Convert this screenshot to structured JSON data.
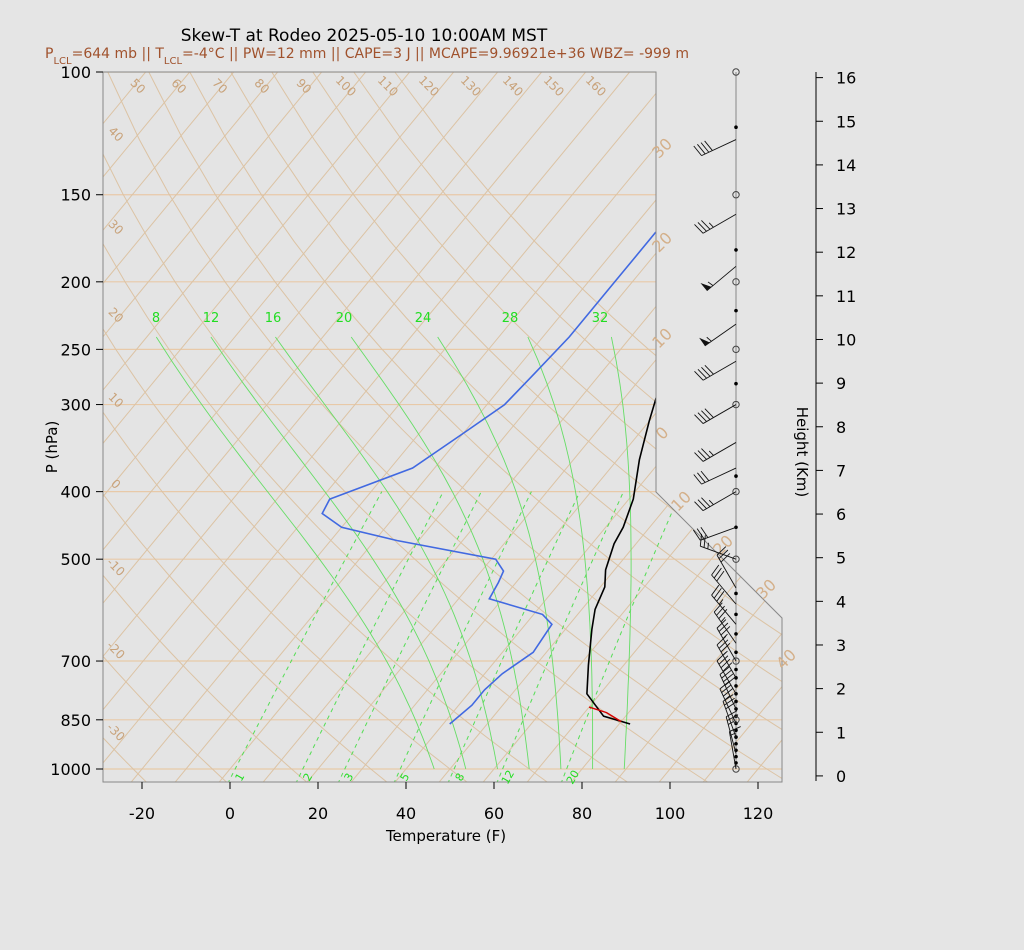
{
  "chart_data": {
    "type": "line",
    "title": "Skew-T at Rodeo 2025-05-10 10:00AM MST",
    "subtitle": {
      "plcl_label": "P",
      "plcl_sub": "LCL",
      "plcl_value": "=644 mb || T",
      "tlcl_sub": "LCL",
      "rest": "=-4°C || PW=12 mm || CAPE=3 J || MCAPE=9.96921e+36 WBZ= -999 m"
    },
    "xlabel": "Temperature (F)",
    "ylabel": "P (hPa)",
    "y2label": "Height (Km)",
    "xlim": [
      -28,
      96
    ],
    "ylim": [
      1050,
      100
    ],
    "y_scale": "log",
    "x_ticks": [
      -20,
      0,
      20,
      40,
      60,
      80,
      100,
      120
    ],
    "y_ticks": [
      100,
      150,
      200,
      250,
      300,
      400,
      500,
      700,
      850,
      1000
    ],
    "height_ticks": [
      0,
      1,
      2,
      3,
      4,
      5,
      6,
      7,
      8,
      9,
      10,
      11,
      12,
      13,
      14,
      15,
      16
    ],
    "isotherm_labels_top": [
      "50",
      "60",
      "70",
      "80",
      "90",
      "100",
      "110",
      "120",
      "130",
      "140",
      "150",
      "160"
    ],
    "isotherm_labels_left": [
      "40",
      "30",
      "20",
      "10",
      "0",
      "-10",
      "-20",
      "-30"
    ],
    "theta_labels": [
      "30",
      "20",
      "10",
      "0",
      "10",
      "20",
      "30",
      "40"
    ],
    "mixing_ratio_labels_top": [
      "8",
      "12",
      "16",
      "20",
      "24",
      "28",
      "32"
    ],
    "mixing_ratio_labels_bottom": [
      "1",
      "2",
      "3",
      "5",
      "8",
      "12",
      "20"
    ],
    "series": [
      {
        "name": "Temperature",
        "color": "#000000",
        "points": [
          [
            82.5,
            862
          ],
          [
            75,
            840
          ],
          [
            67,
            780
          ],
          [
            62,
            710
          ],
          [
            56,
            630
          ],
          [
            53,
            590
          ],
          [
            51,
            548
          ],
          [
            48,
            518
          ],
          [
            45,
            475
          ],
          [
            44,
            450
          ],
          [
            41,
            410
          ],
          [
            35,
            360
          ],
          [
            30,
            317
          ],
          [
            27,
            292
          ],
          [
            26,
            262
          ],
          [
            26,
            230
          ],
          [
            26,
            200
          ],
          [
            27,
            170
          ],
          [
            29,
            145
          ],
          [
            33,
            125
          ],
          [
            40,
            110
          ],
          [
            45,
            100
          ]
        ]
      },
      {
        "name": "Dewpoint",
        "color": "#4169e1",
        "points": [
          [
            41.5,
            862
          ],
          [
            43,
            810
          ],
          [
            43,
            770
          ],
          [
            44,
            730
          ],
          [
            47,
            680
          ],
          [
            46,
            620
          ],
          [
            42,
            600
          ],
          [
            27,
            570
          ],
          [
            26,
            540
          ],
          [
            25,
            520
          ],
          [
            21,
            500
          ],
          [
            -5,
            470
          ],
          [
            -20,
            450
          ],
          [
            -27,
            430
          ],
          [
            -28,
            410
          ],
          [
            -15,
            370
          ],
          [
            -10,
            330
          ],
          [
            -6,
            300
          ],
          [
            -5,
            270
          ],
          [
            -4,
            240
          ],
          [
            -4,
            200
          ],
          [
            -4,
            170
          ],
          [
            0,
            150
          ],
          [
            6,
            130
          ],
          [
            14,
            115
          ],
          [
            20,
            100
          ]
        ]
      },
      {
        "name": "Parcel",
        "color": "#d40000",
        "points": [
          [
            80,
            855
          ],
          [
            75,
            830
          ],
          [
            70,
            815
          ]
        ]
      }
    ],
    "wind_barbs_x": 115,
    "wind_barbs": [
      {
        "p": 1000,
        "dir": 350,
        "spd": 15
      },
      {
        "p": 950,
        "dir": 345,
        "spd": 25
      },
      {
        "p": 900,
        "dir": 340,
        "spd": 30
      },
      {
        "p": 860,
        "dir": 335,
        "spd": 35
      },
      {
        "p": 820,
        "dir": 335,
        "spd": 40
      },
      {
        "p": 780,
        "dir": 330,
        "spd": 40
      },
      {
        "p": 740,
        "dir": 330,
        "spd": 35
      },
      {
        "p": 700,
        "dir": 330,
        "spd": 35
      },
      {
        "p": 660,
        "dir": 325,
        "spd": 35
      },
      {
        "p": 620,
        "dir": 320,
        "spd": 35
      },
      {
        "p": 580,
        "dir": 320,
        "spd": 30
      },
      {
        "p": 550,
        "dir": 330,
        "spd": 30
      },
      {
        "p": 500,
        "dir": 290,
        "spd": 25
      },
      {
        "p": 450,
        "dir": 250,
        "spd": 30
      },
      {
        "p": 400,
        "dir": 240,
        "spd": 35
      },
      {
        "p": 370,
        "dir": 245,
        "spd": 30
      },
      {
        "p": 340,
        "dir": 240,
        "spd": 35
      },
      {
        "p": 300,
        "dir": 240,
        "spd": 40
      },
      {
        "p": 260,
        "dir": 240,
        "spd": 40
      },
      {
        "p": 230,
        "dir": 235,
        "spd": 55
      },
      {
        "p": 190,
        "dir": 230,
        "spd": 55
      },
      {
        "p": 160,
        "dir": 240,
        "spd": 35
      },
      {
        "p": 125,
        "dir": 245,
        "spd": 40
      }
    ],
    "barb_markers": [
      {
        "p": 1000,
        "kind": "circle"
      },
      {
        "p": 850,
        "kind": "circle"
      },
      {
        "p": 700,
        "kind": "circle"
      },
      {
        "p": 500,
        "kind": "circle"
      },
      {
        "p": 400,
        "kind": "circle"
      },
      {
        "p": 300,
        "kind": "circle"
      },
      {
        "p": 250,
        "kind": "circle"
      },
      {
        "p": 200,
        "kind": "circle"
      },
      {
        "p": 150,
        "kind": "circle"
      },
      {
        "p": 100,
        "kind": "circle"
      }
    ]
  }
}
